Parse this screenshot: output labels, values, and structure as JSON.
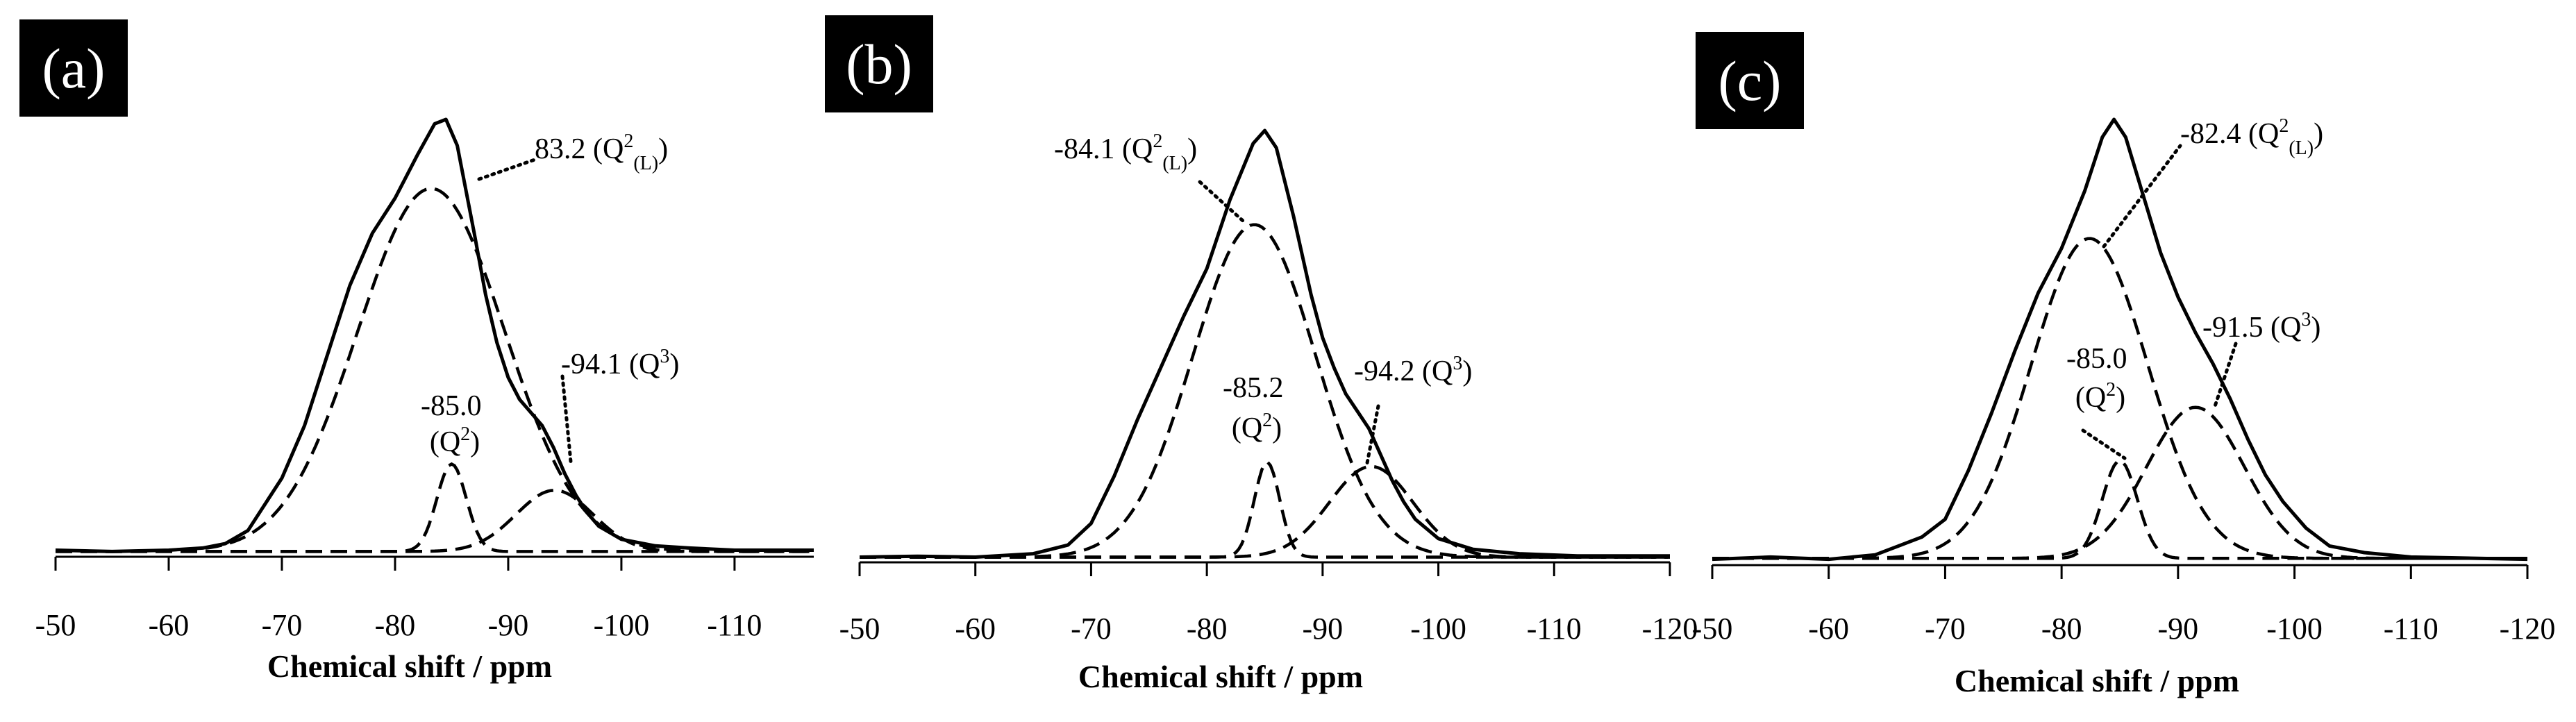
{
  "chart_data": [
    {
      "type": "line",
      "panel_label": "(a)",
      "xlabel": "Chemical shift / ppm",
      "ylabel": "",
      "x_reversed": true,
      "xlim": [
        -50,
        -117
      ],
      "x_ticks": [
        -50,
        -60,
        -70,
        -80,
        -90,
        -100,
        -110
      ],
      "tick_labels": [
        "-50",
        "-60",
        "-70",
        "-80",
        "-90",
        "-100",
        "-110"
      ],
      "series": [
        {
          "style": "solid",
          "points": [
            [
              -50,
              0.015
            ],
            [
              -55,
              0.012
            ],
            [
              -60,
              0.015
            ],
            [
              -63,
              0.02
            ],
            [
              -65,
              0.03
            ],
            [
              -67,
              0.06
            ],
            [
              -70,
              0.18
            ],
            [
              -72,
              0.3
            ],
            [
              -74,
              0.46
            ],
            [
              -76,
              0.62
            ],
            [
              -78,
              0.74
            ],
            [
              -80,
              0.82
            ],
            [
              -82,
              0.92
            ],
            [
              -83.5,
              0.99
            ],
            [
              -84.5,
              1.0
            ],
            [
              -85.5,
              0.94
            ],
            [
              -87,
              0.74
            ],
            [
              -88,
              0.6
            ],
            [
              -89,
              0.49
            ],
            [
              -90,
              0.41
            ],
            [
              -91,
              0.36
            ],
            [
              -92,
              0.33
            ],
            [
              -93,
              0.3
            ],
            [
              -94,
              0.25
            ],
            [
              -95,
              0.19
            ],
            [
              -96,
              0.14
            ],
            [
              -97,
              0.1
            ],
            [
              -98,
              0.07
            ],
            [
              -100,
              0.04
            ],
            [
              -103,
              0.025
            ],
            [
              -106,
              0.02
            ],
            [
              -110,
              0.015
            ],
            [
              -117,
              0.015
            ]
          ]
        },
        {
          "style": "dashed",
          "center": -83.2,
          "height": 0.83,
          "width": 6.5
        },
        {
          "style": "dashed",
          "center": -85.0,
          "height": 0.2,
          "width": 1.3
        },
        {
          "style": "dashed",
          "center": -94.1,
          "height": 0.14,
          "width": 3.4
        }
      ],
      "annotations": [
        {
          "text": "83.2 (Q2(L))",
          "x": -83.2
        },
        {
          "text": "-85.0 (Q2)",
          "x": -85.0
        },
        {
          "text": "-94.1 (Q3)",
          "x": -94.1
        }
      ]
    },
    {
      "type": "line",
      "panel_label": "(b)",
      "xlabel": "Chemical shift / ppm",
      "ylabel": "",
      "x_reversed": true,
      "xlim": [
        -50,
        -120
      ],
      "x_ticks": [
        -50,
        -60,
        -70,
        -80,
        -90,
        -100,
        -110,
        -120
      ],
      "tick_labels": [
        "-50",
        "-60",
        "-70",
        "-80",
        "-90",
        "-100",
        "-110",
        "-120"
      ],
      "series": [
        {
          "style": "solid",
          "points": [
            [
              -50,
              0.012
            ],
            [
              -55,
              0.014
            ],
            [
              -60,
              0.012
            ],
            [
              -65,
              0.02
            ],
            [
              -68,
              0.04
            ],
            [
              -70,
              0.09
            ],
            [
              -72,
              0.2
            ],
            [
              -74,
              0.33
            ],
            [
              -76,
              0.45
            ],
            [
              -78,
              0.57
            ],
            [
              -80,
              0.68
            ],
            [
              -82,
              0.84
            ],
            [
              -84,
              0.97
            ],
            [
              -85,
              1.0
            ],
            [
              -86,
              0.96
            ],
            [
              -87.5,
              0.8
            ],
            [
              -89,
              0.62
            ],
            [
              -90,
              0.52
            ],
            [
              -91,
              0.45
            ],
            [
              -92,
              0.39
            ],
            [
              -93,
              0.35
            ],
            [
              -94,
              0.31
            ],
            [
              -95,
              0.25
            ],
            [
              -96,
              0.19
            ],
            [
              -97,
              0.14
            ],
            [
              -98,
              0.1
            ],
            [
              -100,
              0.055
            ],
            [
              -103,
              0.03
            ],
            [
              -107,
              0.02
            ],
            [
              -112,
              0.015
            ],
            [
              -120,
              0.015
            ]
          ]
        },
        {
          "style": "dashed",
          "center": -84.1,
          "height": 0.77,
          "width": 5.3
        },
        {
          "style": "dashed",
          "center": -85.2,
          "height": 0.22,
          "width": 1.1
        },
        {
          "style": "dashed",
          "center": -94.2,
          "height": 0.21,
          "width": 3.6
        }
      ],
      "annotations": [
        {
          "text": "-84.1 (Q2(L))",
          "x": -84.1
        },
        {
          "text": "-85.2 (Q2)",
          "x": -85.2
        },
        {
          "text": "-94.2 (Q3)",
          "x": -94.2
        }
      ]
    },
    {
      "type": "line",
      "panel_label": "(c)",
      "xlabel": "Chemical shift / ppm",
      "ylabel": "",
      "x_reversed": true,
      "xlim": [
        -50,
        -120
      ],
      "x_ticks": [
        -50,
        -60,
        -70,
        -80,
        -90,
        -100,
        -110,
        -120
      ],
      "tick_labels": [
        "-50",
        "-60",
        "-70",
        "-80",
        "-90",
        "-100",
        "-110",
        "-120"
      ],
      "series": [
        {
          "style": "solid",
          "points": [
            [
              -50,
              0.01
            ],
            [
              -55,
              0.015
            ],
            [
              -60,
              0.01
            ],
            [
              -64,
              0.02
            ],
            [
              -66,
              0.04
            ],
            [
              -68,
              0.06
            ],
            [
              -70,
              0.1
            ],
            [
              -72,
              0.21
            ],
            [
              -74,
              0.34
            ],
            [
              -76,
              0.48
            ],
            [
              -78,
              0.61
            ],
            [
              -80,
              0.71
            ],
            [
              -82,
              0.84
            ],
            [
              -83.5,
              0.96
            ],
            [
              -84.5,
              1.0
            ],
            [
              -85.5,
              0.96
            ],
            [
              -87,
              0.83
            ],
            [
              -88.5,
              0.7
            ],
            [
              -90,
              0.6
            ],
            [
              -91.5,
              0.52
            ],
            [
              -93,
              0.45
            ],
            [
              -94.5,
              0.37
            ],
            [
              -96,
              0.28
            ],
            [
              -97.5,
              0.2
            ],
            [
              -99,
              0.14
            ],
            [
              -101,
              0.08
            ],
            [
              -103,
              0.04
            ],
            [
              -106,
              0.025
            ],
            [
              -110,
              0.015
            ],
            [
              -120,
              0.01
            ]
          ]
        },
        {
          "style": "dashed",
          "center": -82.4,
          "height": 0.72,
          "width": 5.0
        },
        {
          "style": "dashed",
          "center": -85.0,
          "height": 0.22,
          "width": 1.5
        },
        {
          "style": "dashed",
          "center": -91.5,
          "height": 0.34,
          "width": 4.2
        }
      ],
      "annotations": [
        {
          "text": "-82.4 (Q2(L))",
          "x": -82.4
        },
        {
          "text": "-85.0 (Q2)",
          "x": -85.0
        },
        {
          "text": "-91.5 (Q3)",
          "x": -91.5
        }
      ]
    }
  ],
  "panels": [
    {
      "tag": "(a)",
      "xlabel": "Chemical shift / ppm",
      "labels": {
        "ql_num": "83.2 (Q",
        "ql_sup": "2",
        "ql_sub": "(L)",
        "ql_close": ")",
        "q2_num": "-85.0",
        "q2_open": "(Q",
        "q2_sup": "2",
        "q2_close": ")",
        "q3_num": "-94.1 (Q",
        "q3_sup": "3",
        "q3_close": ")"
      }
    },
    {
      "tag": "(b)",
      "xlabel": "Chemical shift / ppm",
      "labels": {
        "ql_num": "-84.1 (Q",
        "ql_sup": "2",
        "ql_sub": "(L)",
        "ql_close": ")",
        "q2_num": "-85.2",
        "q2_open": "(Q",
        "q2_sup": "2",
        "q2_close": ")",
        "q3_num": "-94.2 (Q",
        "q3_sup": "3",
        "q3_close": ")"
      }
    },
    {
      "tag": "(c)",
      "xlabel": "Chemical shift / ppm",
      "labels": {
        "ql_num": "-82.4 (Q",
        "ql_sup": "2",
        "ql_sub": "(L)",
        "ql_close": ")",
        "q2_num": "-85.0",
        "q2_open": "(Q",
        "q2_sup": "2",
        "q2_close": ")",
        "q3_num": "-91.5 (Q",
        "q3_sup": "3",
        "q3_close": ")"
      }
    }
  ]
}
